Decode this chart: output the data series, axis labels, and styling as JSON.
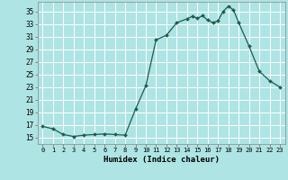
{
  "xlabel": "Humidex (Indice chaleur)",
  "ylabel": "",
  "background_color": "#aee4e4",
  "grid_color": "#ffffff",
  "line_color": "#1a5c50",
  "marker_color": "#1a5c50",
  "xlim": [
    -0.5,
    23.5
  ],
  "ylim": [
    14,
    36.5
  ],
  "yticks": [
    15,
    17,
    19,
    21,
    23,
    25,
    27,
    29,
    31,
    33,
    35
  ],
  "xticks": [
    0,
    1,
    2,
    3,
    4,
    5,
    6,
    7,
    8,
    9,
    10,
    11,
    12,
    13,
    14,
    15,
    16,
    17,
    18,
    19,
    20,
    21,
    22,
    23
  ],
  "x": [
    0,
    1,
    2,
    3,
    4,
    5,
    6,
    7,
    8,
    9,
    10,
    11,
    12,
    13,
    14,
    14.5,
    15,
    15.5,
    16,
    16.5,
    17,
    17.5,
    18,
    18.5,
    19,
    20,
    21,
    22,
    23
  ],
  "y": [
    16.8,
    16.4,
    15.5,
    15.2,
    15.4,
    15.5,
    15.6,
    15.5,
    15.4,
    19.5,
    23.2,
    30.5,
    31.2,
    33.2,
    33.8,
    34.2,
    33.9,
    34.3,
    33.6,
    33.2,
    33.5,
    35.0,
    35.8,
    35.2,
    33.2,
    29.5,
    25.5,
    24.0,
    23.0
  ]
}
